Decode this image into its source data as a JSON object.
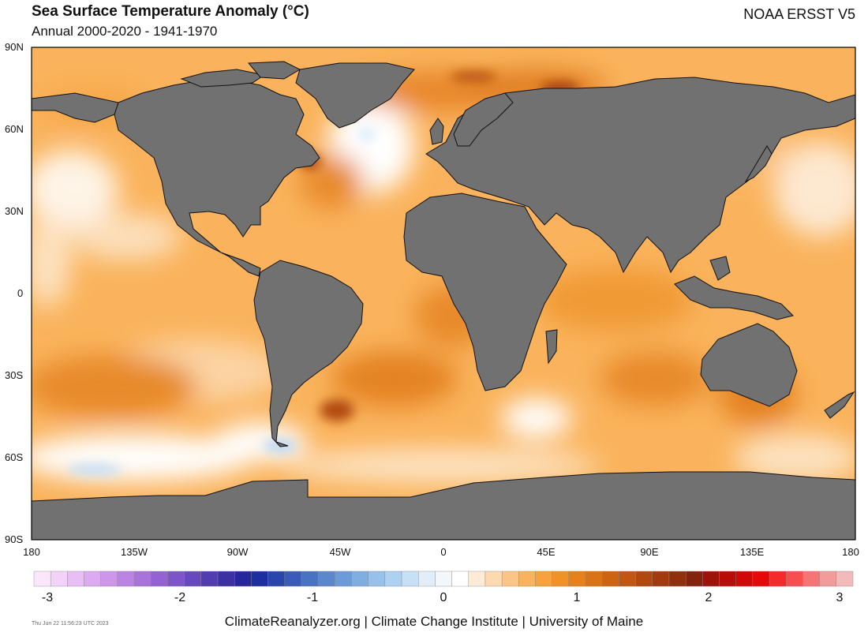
{
  "header": {
    "title": "Sea Surface Temperature Anomaly (°C)",
    "subtitle": "Annual 2000-2020 - 1941-1970",
    "source": "NOAA ERSST V5"
  },
  "axes": {
    "lat_labels": [
      "90N",
      "60N",
      "30N",
      "0",
      "30S",
      "60S",
      "90S"
    ],
    "lon_labels": [
      "180",
      "135W",
      "90W",
      "45W",
      "0",
      "45E",
      "90E",
      "135E",
      "180"
    ]
  },
  "colorbar": {
    "ticks": [
      "-3",
      "-2",
      "-1",
      "0",
      "1",
      "2",
      "3"
    ],
    "colors": [
      "#fbe6fb",
      "#f3d2f8",
      "#e8bff4",
      "#dcaaf0",
      "#cd96ea",
      "#bb84e3",
      "#a873dc",
      "#9363d3",
      "#7d55c9",
      "#6748bd",
      "#513cb0",
      "#3b31a3",
      "#26289a",
      "#1d2f9f",
      "#2a46aa",
      "#3a5cb8",
      "#4a72c4",
      "#5b87cf",
      "#6d9bd9",
      "#81aee2",
      "#97c0ea",
      "#afd1f1",
      "#c8e0f6",
      "#e1eefa",
      "#f2f7fc",
      "#ffffff",
      "#fdebd7",
      "#fcd9ae",
      "#fbc685",
      "#f9b25e",
      "#f7a13f",
      "#f09228",
      "#e5821d",
      "#d97318",
      "#cc6414",
      "#bf5611",
      "#b0480f",
      "#a13b0d",
      "#90300c",
      "#82230b",
      "#9e1309",
      "#b80c08",
      "#d10808",
      "#e60909",
      "#f52b2b",
      "#f74f4f",
      "#f57575",
      "#f49a9a",
      "#f2bbbb"
    ]
  },
  "map_colors": {
    "land": "#717171",
    "coast": "#111111",
    "ocean_base": "#fab35c",
    "frame": "#000000"
  },
  "footer": {
    "credit": "ClimateReanalyzer.org | Climate Change Institute | University of Maine",
    "timestamp": "Thu Jun 22 11:56:23 UTC 2023"
  }
}
